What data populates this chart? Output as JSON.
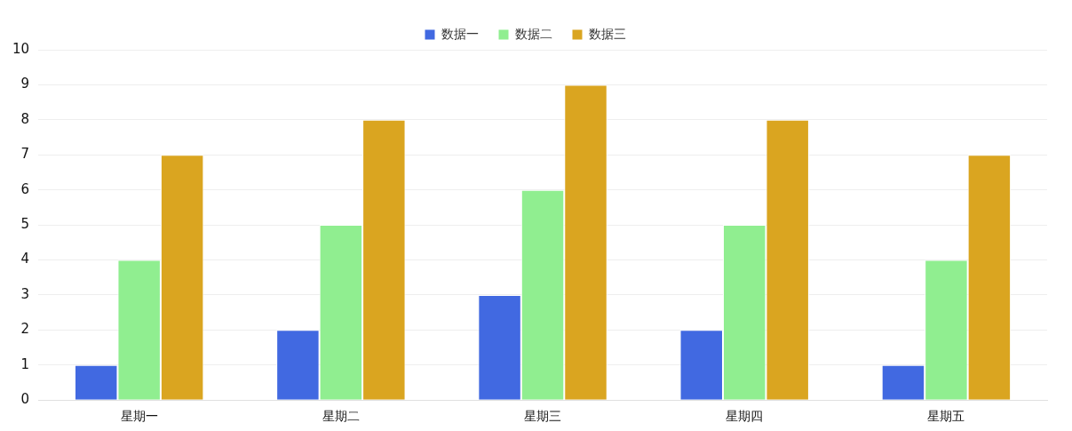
{
  "chart_data": {
    "type": "bar",
    "categories": [
      "星期一",
      "星期二",
      "星期三",
      "星期四",
      "星期五"
    ],
    "series": [
      {
        "name": "数据一",
        "color": "#4169e1",
        "values": [
          1,
          2,
          3,
          2,
          1
        ]
      },
      {
        "name": "数据二",
        "color": "#90ee90",
        "values": [
          4,
          5,
          6,
          5,
          4
        ]
      },
      {
        "name": "数据三",
        "color": "#daa520",
        "values": [
          7,
          8,
          9,
          8,
          7
        ]
      }
    ],
    "ylim": [
      0,
      10
    ],
    "yticks": [
      0,
      1,
      2,
      3,
      4,
      5,
      6,
      7,
      8,
      9,
      10
    ],
    "grid": "y",
    "legend": "top"
  }
}
